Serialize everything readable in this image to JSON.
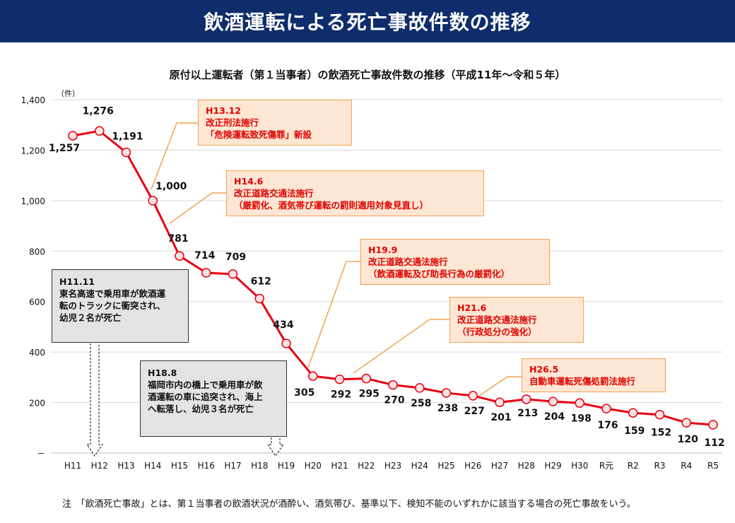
{
  "header": {
    "title": "飲酒運転による死亡事故件数の推移"
  },
  "chart_data": {
    "type": "line",
    "title": "原付以上運転者（第１当事者）の飲酒死亡事故件数の推移（平成11年～令和５年）",
    "unit": "（件）",
    "categories": [
      "H11",
      "H12",
      "H13",
      "H14",
      "H15",
      "H16",
      "H17",
      "H18",
      "H19",
      "H20",
      "H21",
      "H22",
      "H23",
      "H24",
      "H25",
      "H26",
      "H27",
      "H28",
      "H29",
      "H30",
      "R元",
      "R2",
      "R3",
      "R4",
      "R5"
    ],
    "values": [
      1257,
      1276,
      1191,
      1000,
      781,
      714,
      709,
      612,
      434,
      305,
      292,
      295,
      270,
      258,
      238,
      227,
      201,
      213,
      204,
      198,
      176,
      159,
      152,
      120,
      112
    ],
    "value_labels": [
      "1,257",
      "1,276",
      "1,191",
      "1,000",
      "781",
      "714",
      "709",
      "612",
      "434",
      "305",
      "292",
      "295",
      "270",
      "258",
      "238",
      "227",
      "201",
      "213",
      "204",
      "198",
      "176",
      "159",
      "152",
      "120",
      "112"
    ],
    "y_ticks": [
      "－",
      "200",
      "400",
      "600",
      "800",
      "1,000",
      "1,200",
      "1,400"
    ],
    "ylim": [
      0,
      1400
    ],
    "grid": true,
    "series_color": "#e60012",
    "marker_fill": "#fde3e3",
    "annotations": [
      {
        "lines": [
          "H13.12",
          "改正刑法施行",
          "「危険運転致死傷罪」新設"
        ]
      },
      {
        "lines": [
          "H14.6",
          "改正道路交通法施行",
          "（厳罰化、酒気帯び運転の罰則適用対象見直し）"
        ]
      },
      {
        "lines": [
          "H19.9",
          "改正道路交通法施行",
          "（飲酒運転及び助長行為の厳罰化）"
        ]
      },
      {
        "lines": [
          "H21.6",
          "改正道路交通法施行",
          "（行政処分の強化）"
        ]
      },
      {
        "lines": [
          "H26.5",
          "自動車運転死傷処罰法施行"
        ]
      }
    ],
    "events": [
      {
        "lines": [
          "H11.11",
          "東名高速で乗用車が飲酒運",
          "転のトラックに衝突され、",
          "幼児２名が死亡"
        ]
      },
      {
        "lines": [
          "H18.8",
          "福岡市内の橋上で乗用車が飲",
          "酒運転の車に追突され、海上",
          "へ転落し、幼児３名が死亡"
        ]
      }
    ]
  },
  "note": "注　「飲酒死亡事故」とは、第１当事者の飲酒状況が酒酔い、酒気帯び、基準以下、検知不能のいずれかに該当する場合の死亡事故をいう。"
}
